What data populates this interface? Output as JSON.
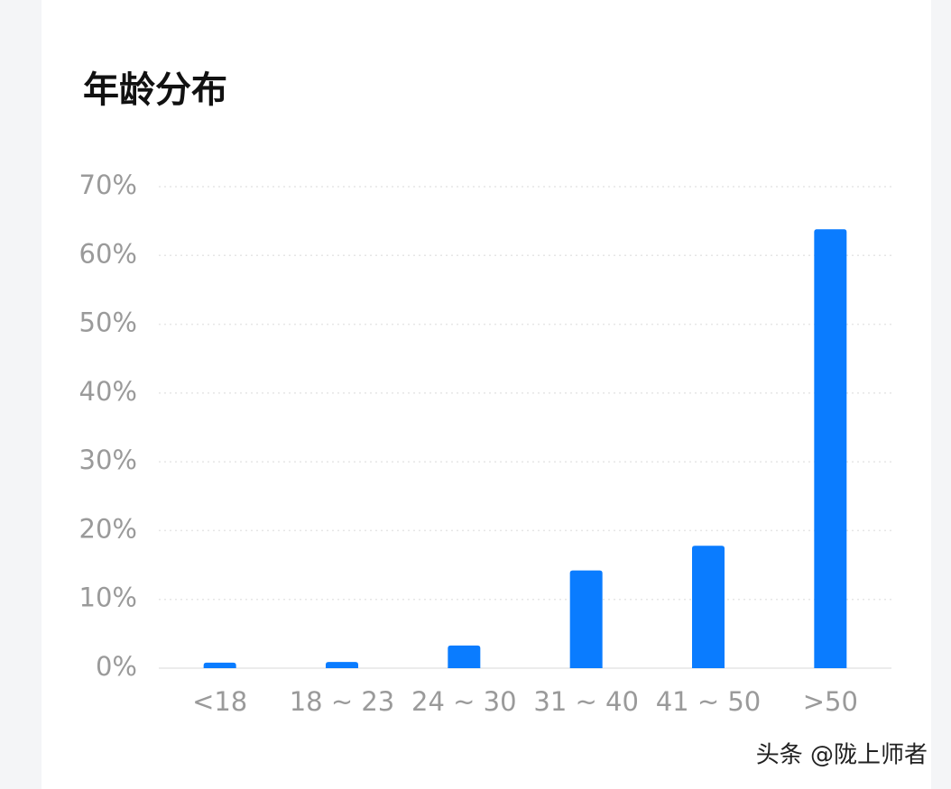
{
  "chart_data": {
    "type": "bar",
    "title": "年龄分布",
    "categories": [
      "<18",
      "18 ~ 23",
      "24 ~ 30",
      "31 ~ 40",
      "41 ~ 50",
      ">50"
    ],
    "values": [
      0.8,
      0.9,
      3.3,
      14.2,
      17.8,
      63.8
    ],
    "color": "#0a7cff",
    "ylim": [
      0,
      70
    ],
    "yticks": [
      {
        "value": 0,
        "label": "0%"
      },
      {
        "value": 10,
        "label": "10%"
      },
      {
        "value": 20,
        "label": "20%"
      },
      {
        "value": 30,
        "label": "30%"
      },
      {
        "value": 40,
        "label": "40%"
      },
      {
        "value": 50,
        "label": "50%"
      },
      {
        "value": 60,
        "label": "60%"
      },
      {
        "value": 70,
        "label": "70%"
      }
    ],
    "grid": true,
    "watermark": "头条 @陇上师者"
  }
}
